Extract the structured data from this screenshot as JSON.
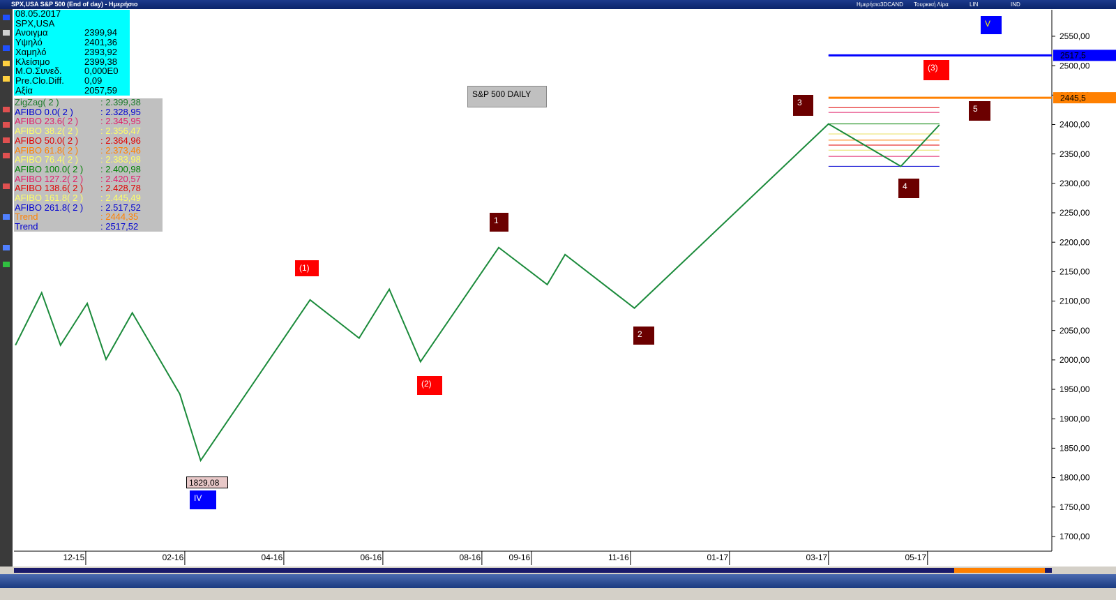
{
  "window": {
    "title": "SPX,USA S&P 500 (End of day) - Ημερήσιο",
    "toolbar": [
      "Ημερήσιο",
      "3DCAND",
      "Τουρκική Λίρα",
      "LIN",
      "IND"
    ]
  },
  "info": {
    "date": "08.05.2017",
    "symbol": "SPX,USA",
    "rows": [
      {
        "label": "Ανοιγμα",
        "value": "2399,94"
      },
      {
        "label": "Υψηλό",
        "value": "2401,36"
      },
      {
        "label": "Χαμηλό",
        "value": "2393,92"
      },
      {
        "label": "Κλείσιμο",
        "value": "2399,38"
      },
      {
        "label": "Μ.Ο.Συνεδ.",
        "value": "0,000E0"
      },
      {
        "label": "Pre.Clo.Diff.",
        "value": "0,09"
      },
      {
        "label": "Αξία",
        "value": "2057,59"
      }
    ]
  },
  "indicators": [
    {
      "name": "ZigZag( 2 )",
      "value": 2399.38,
      "label": ": 2.399,38",
      "color": "#1a7a2a"
    },
    {
      "name": "AFIBO 0.0( 2 )",
      "value": 2328.95,
      "label": ": 2.328,95",
      "color": "#0000d0"
    },
    {
      "name": "AFIBO 23.6( 2 )",
      "value": 2345.95,
      "label": ": 2.345,95",
      "color": "#e0206a"
    },
    {
      "name": "AFIBO 38.2( 2 )",
      "value": 2356.47,
      "label": ": 2.356,47",
      "color": "#ffff66"
    },
    {
      "name": "AFIBO 50.0( 2 )",
      "value": 2364.96,
      "label": ": 2.364,96",
      "color": "#e00000"
    },
    {
      "name": "AFIBO 61.8( 2 )",
      "value": 2373.46,
      "label": ": 2.373,46",
      "color": "#ff8000"
    },
    {
      "name": "AFIBO 76.4( 2 )",
      "value": 2383.98,
      "label": ": 2.383,98",
      "color": "#ffff66"
    },
    {
      "name": "AFIBO 100.0( 2 )",
      "value": 2400.98,
      "label": ": 2.400,98",
      "color": "#008000"
    },
    {
      "name": "AFIBO 127.2( 2 )",
      "value": 2420.57,
      "label": ": 2.420,57",
      "color": "#e0206a"
    },
    {
      "name": "AFIBO 138.6( 2 )",
      "value": 2428.78,
      "label": ": 2.428,78",
      "color": "#e00000"
    },
    {
      "name": "AFIBO 161.8( 2 )",
      "value": 2445.49,
      "label": ": 2.445,49",
      "color": "#ffff66"
    },
    {
      "name": "AFIBO 261.8( 2 )",
      "value": 2517.52,
      "label": ": 2.517,52",
      "color": "#0000d0"
    },
    {
      "name": "Trend",
      "value": 2444.35,
      "label": ": 2444,35",
      "color": "#ff8000"
    },
    {
      "name": "Trend",
      "value": 2517.52,
      "label": ": 2517,52",
      "color": "#0000d0"
    }
  ],
  "chart_data": {
    "type": "line",
    "title": "S&P 500 DAILY",
    "x": [
      -1.42,
      -0.89,
      -0.51,
      0.03,
      0.41,
      0.94,
      1.9,
      2.32,
      4.53,
      5.52,
      6.13,
      6.76,
      8.34,
      9.32,
      9.68,
      11.08,
      15.0,
      16.46,
      17.24
    ],
    "series": [
      {
        "color": "#1a8a3a",
        "values": [
          2025,
          2114,
          2025,
          2096,
          2001,
          2080,
          1942,
          1829.08,
          2102,
          2037,
          2120,
          1997,
          2191,
          2128,
          2179,
          2088,
          2400.98,
          2328.95,
          2399.38
        ]
      }
    ],
    "low_label": "1829,08",
    "wave_labels": [
      "(1)",
      "(2)",
      "(3)",
      "1",
      "2",
      "3",
      "4",
      "5",
      "IV",
      "V"
    ],
    "price_tags": [
      {
        "value": 2517.5,
        "label": "2517,5",
        "color": "#0000ff"
      },
      {
        "value": 2445.5,
        "label": "2445,5",
        "color": "#ff8000"
      }
    ],
    "xlim": [
      -1.45,
      19.51
    ],
    "ylim": [
      1675,
      2595
    ],
    "xticks": [
      {
        "value": 0,
        "label": "12-15"
      },
      {
        "value": 2,
        "label": "02-16"
      },
      {
        "value": 4,
        "label": "04-16"
      },
      {
        "value": 6,
        "label": "06-16"
      },
      {
        "value": 8,
        "label": "08-16"
      },
      {
        "value": 9,
        "label": "09-16"
      },
      {
        "value": 11,
        "label": "11-16"
      },
      {
        "value": 13,
        "label": "01-17"
      },
      {
        "value": 15,
        "label": "03-17"
      },
      {
        "value": 17,
        "label": "05-17"
      }
    ],
    "yticks": [
      {
        "value": 1700,
        "label": "1700,00"
      },
      {
        "value": 1750,
        "label": "1750,00"
      },
      {
        "value": 1800,
        "label": "1800,00"
      },
      {
        "value": 1850,
        "label": "1850,00"
      },
      {
        "value": 1900,
        "label": "1900,00"
      },
      {
        "value": 1950,
        "label": "1950,00"
      },
      {
        "value": 2000,
        "label": "2000,00"
      },
      {
        "value": 2050,
        "label": "2050,00"
      },
      {
        "value": 2100,
        "label": "2100,00"
      },
      {
        "value": 2150,
        "label": "2150,00"
      },
      {
        "value": 2200,
        "label": "2200,00"
      },
      {
        "value": 2250,
        "label": "2250,00"
      },
      {
        "value": 2300,
        "label": "2300,00"
      },
      {
        "value": 2350,
        "label": "2350,00"
      },
      {
        "value": 2400,
        "label": "2400,00"
      },
      {
        "value": 2450,
        "label": "2450,00"
      },
      {
        "value": 2500,
        "label": "2500,00"
      },
      {
        "value": 2550,
        "label": "2550,00"
      }
    ]
  }
}
